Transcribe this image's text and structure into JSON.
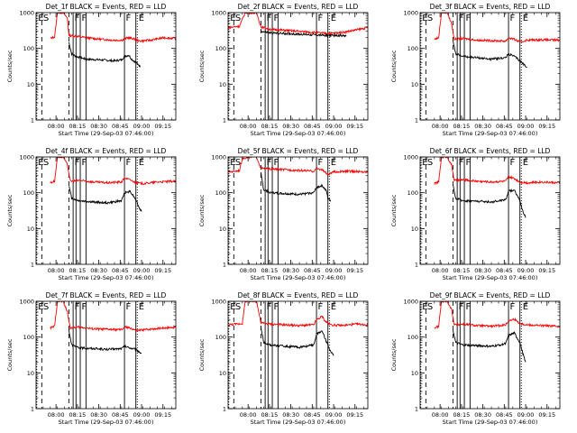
{
  "chart_data": {
    "type": "line",
    "title_suffix": "BLACK = Events, RED = LLD",
    "xlabel": "Start Time (29-Sep-03 07:46:00)",
    "ylabel": "Counts/sec",
    "y_scale": "log",
    "ylim": [
      1,
      1000
    ],
    "y_ticks": [
      "1",
      "10",
      "100",
      "1000"
    ],
    "x_ticks": [
      "08:00",
      "08:15",
      "08:30",
      "08:45",
      "09:00",
      "09:15"
    ],
    "x_range_minutes": [
      0,
      98
    ],
    "x_tick_minutes": [
      14,
      29,
      44,
      59,
      74,
      89
    ],
    "legend": [
      {
        "name": "Events",
        "color": "#000000"
      },
      {
        "name": "LLD",
        "color": "#ff0000"
      }
    ],
    "markers": [
      {
        "label": "E",
        "style": "dotted",
        "at": 0.5
      },
      {
        "label": "S",
        "style": "dashed",
        "at": 4
      },
      {
        "label": "",
        "style": "dashed",
        "at": 23
      },
      {
        "label": "F",
        "style": "solid",
        "at": 26
      },
      {
        "label": "",
        "style": "solid",
        "at": 28
      },
      {
        "label": "F",
        "style": "solid",
        "at": 31
      },
      {
        "label": "",
        "style": "solid",
        "at": 35
      },
      {
        "label": "F",
        "style": "solid",
        "at": 62
      },
      {
        "label": "",
        "style": "solid",
        "at": 70
      },
      {
        "label": "E",
        "style": "dotted",
        "at": 71
      }
    ],
    "panels": [
      {
        "detector": "Det_1f",
        "x_start": 10,
        "x_end": 98,
        "red": [
          [
            10,
            190
          ],
          [
            13,
            210
          ],
          [
            15,
            1000
          ],
          [
            17,
            1000
          ],
          [
            19,
            1000
          ],
          [
            22,
            700
          ],
          [
            23,
            230
          ],
          [
            28,
            220
          ],
          [
            35,
            200
          ],
          [
            45,
            180
          ],
          [
            55,
            170
          ],
          [
            60,
            170
          ],
          [
            62,
            180
          ],
          [
            64,
            200
          ],
          [
            67,
            190
          ],
          [
            70,
            180
          ],
          [
            72,
            160
          ],
          [
            80,
            170
          ],
          [
            90,
            200
          ],
          [
            98,
            190
          ]
        ],
        "black": [
          [
            23,
            150
          ],
          [
            25,
            70
          ],
          [
            28,
            60
          ],
          [
            35,
            50
          ],
          [
            45,
            48
          ],
          [
            55,
            45
          ],
          [
            60,
            48
          ],
          [
            62,
            60
          ],
          [
            65,
            65
          ],
          [
            67,
            50
          ],
          [
            70,
            40
          ],
          [
            72,
            35
          ],
          [
            73,
            30
          ]
        ]
      },
      {
        "detector": "Det_2f",
        "x_start": 0,
        "x_end": 98,
        "red": [
          [
            0,
            380
          ],
          [
            8,
            420
          ],
          [
            12,
            1000
          ],
          [
            20,
            1000
          ],
          [
            23,
            400
          ],
          [
            30,
            340
          ],
          [
            40,
            320
          ],
          [
            50,
            300
          ],
          [
            60,
            280
          ],
          [
            70,
            260
          ],
          [
            80,
            280
          ],
          [
            90,
            330
          ],
          [
            98,
            380
          ]
        ],
        "black": [
          [
            23,
            300
          ],
          [
            30,
            270
          ],
          [
            40,
            260
          ],
          [
            50,
            250
          ],
          [
            60,
            240
          ],
          [
            70,
            230
          ],
          [
            80,
            230
          ],
          [
            83,
            220
          ]
        ]
      },
      {
        "detector": "Det_3f",
        "x_start": 10,
        "x_end": 98,
        "red": [
          [
            10,
            180
          ],
          [
            13,
            200
          ],
          [
            15,
            1000
          ],
          [
            19,
            1000
          ],
          [
            22,
            500
          ],
          [
            24,
            180
          ],
          [
            30,
            190
          ],
          [
            40,
            170
          ],
          [
            50,
            165
          ],
          [
            60,
            160
          ],
          [
            62,
            200
          ],
          [
            66,
            180
          ],
          [
            70,
            150
          ],
          [
            75,
            170
          ],
          [
            85,
            175
          ],
          [
            98,
            170
          ]
        ],
        "black": [
          [
            23,
            160
          ],
          [
            25,
            70
          ],
          [
            30,
            60
          ],
          [
            40,
            55
          ],
          [
            50,
            50
          ],
          [
            60,
            55
          ],
          [
            62,
            70
          ],
          [
            66,
            60
          ],
          [
            70,
            45
          ],
          [
            73,
            35
          ],
          [
            75,
            30
          ]
        ]
      },
      {
        "detector": "Det_4f",
        "x_start": 10,
        "x_end": 98,
        "red": [
          [
            10,
            190
          ],
          [
            13,
            210
          ],
          [
            15,
            1000
          ],
          [
            19,
            1000
          ],
          [
            22,
            600
          ],
          [
            24,
            210
          ],
          [
            30,
            220
          ],
          [
            40,
            200
          ],
          [
            50,
            190
          ],
          [
            60,
            200
          ],
          [
            62,
            260
          ],
          [
            66,
            230
          ],
          [
            70,
            190
          ],
          [
            75,
            180
          ],
          [
            85,
            200
          ],
          [
            98,
            210
          ]
        ],
        "black": [
          [
            23,
            160
          ],
          [
            25,
            70
          ],
          [
            30,
            60
          ],
          [
            40,
            55
          ],
          [
            50,
            52
          ],
          [
            60,
            60
          ],
          [
            62,
            100
          ],
          [
            66,
            110
          ],
          [
            70,
            65
          ],
          [
            72,
            40
          ],
          [
            74,
            30
          ]
        ]
      },
      {
        "detector": "Det_5f",
        "x_start": 0,
        "x_end": 98,
        "red": [
          [
            0,
            380
          ],
          [
            8,
            420
          ],
          [
            10,
            900
          ],
          [
            14,
            1000
          ],
          [
            20,
            1000
          ],
          [
            23,
            480
          ],
          [
            30,
            460
          ],
          [
            40,
            440
          ],
          [
            50,
            420
          ],
          [
            60,
            400
          ],
          [
            62,
            480
          ],
          [
            66,
            440
          ],
          [
            70,
            320
          ],
          [
            74,
            380
          ],
          [
            85,
            400
          ],
          [
            98,
            380
          ]
        ],
        "black": [
          [
            23,
            350
          ],
          [
            25,
            120
          ],
          [
            30,
            100
          ],
          [
            40,
            95
          ],
          [
            50,
            90
          ],
          [
            60,
            100
          ],
          [
            62,
            140
          ],
          [
            66,
            160
          ],
          [
            69,
            110
          ],
          [
            70,
            70
          ],
          [
            72,
            60
          ]
        ]
      },
      {
        "detector": "Det_6f",
        "x_start": 10,
        "x_end": 98,
        "red": [
          [
            10,
            180
          ],
          [
            13,
            200
          ],
          [
            15,
            1000
          ],
          [
            19,
            1000
          ],
          [
            22,
            600
          ],
          [
            24,
            220
          ],
          [
            30,
            230
          ],
          [
            40,
            210
          ],
          [
            50,
            200
          ],
          [
            60,
            210
          ],
          [
            62,
            280
          ],
          [
            66,
            250
          ],
          [
            70,
            200
          ],
          [
            75,
            190
          ],
          [
            85,
            200
          ],
          [
            98,
            190
          ]
        ],
        "black": [
          [
            23,
            160
          ],
          [
            25,
            70
          ],
          [
            30,
            60
          ],
          [
            40,
            58
          ],
          [
            50,
            55
          ],
          [
            60,
            65
          ],
          [
            62,
            110
          ],
          [
            66,
            120
          ],
          [
            70,
            60
          ],
          [
            72,
            30
          ],
          [
            74,
            20
          ]
        ]
      },
      {
        "detector": "Det_7f",
        "x_start": 10,
        "x_end": 98,
        "red": [
          [
            10,
            180
          ],
          [
            13,
            200
          ],
          [
            15,
            1000
          ],
          [
            19,
            1000
          ],
          [
            22,
            500
          ],
          [
            24,
            180
          ],
          [
            30,
            190
          ],
          [
            40,
            170
          ],
          [
            50,
            165
          ],
          [
            60,
            160
          ],
          [
            62,
            190
          ],
          [
            66,
            180
          ],
          [
            70,
            150
          ],
          [
            75,
            160
          ],
          [
            85,
            175
          ],
          [
            98,
            190
          ]
        ],
        "black": [
          [
            23,
            160
          ],
          [
            25,
            60
          ],
          [
            30,
            50
          ],
          [
            40,
            48
          ],
          [
            50,
            45
          ],
          [
            60,
            48
          ],
          [
            62,
            55
          ],
          [
            66,
            50
          ],
          [
            70,
            45
          ],
          [
            72,
            40
          ],
          [
            74,
            35
          ]
        ]
      },
      {
        "detector": "Det_8f",
        "x_start": 0,
        "x_end": 98,
        "red": [
          [
            0,
            220
          ],
          [
            10,
            240
          ],
          [
            12,
            1000
          ],
          [
            20,
            1000
          ],
          [
            23,
            250
          ],
          [
            30,
            230
          ],
          [
            40,
            220
          ],
          [
            50,
            210
          ],
          [
            60,
            220
          ],
          [
            62,
            300
          ],
          [
            66,
            380
          ],
          [
            68,
            280
          ],
          [
            72,
            220
          ],
          [
            80,
            210
          ],
          [
            90,
            230
          ],
          [
            98,
            220
          ]
        ],
        "black": [
          [
            23,
            200
          ],
          [
            25,
            70
          ],
          [
            30,
            60
          ],
          [
            40,
            55
          ],
          [
            50,
            52
          ],
          [
            60,
            60
          ],
          [
            62,
            120
          ],
          [
            66,
            150
          ],
          [
            68,
            90
          ],
          [
            70,
            60
          ],
          [
            72,
            40
          ],
          [
            74,
            30
          ]
        ]
      },
      {
        "detector": "Det_9f",
        "x_start": 10,
        "x_end": 98,
        "red": [
          [
            10,
            180
          ],
          [
            13,
            200
          ],
          [
            15,
            1000
          ],
          [
            19,
            1000
          ],
          [
            22,
            600
          ],
          [
            24,
            220
          ],
          [
            30,
            230
          ],
          [
            40,
            210
          ],
          [
            50,
            200
          ],
          [
            60,
            220
          ],
          [
            62,
            280
          ],
          [
            66,
            320
          ],
          [
            70,
            240
          ],
          [
            75,
            220
          ],
          [
            85,
            210
          ],
          [
            98,
            200
          ]
        ],
        "black": [
          [
            23,
            160
          ],
          [
            25,
            70
          ],
          [
            30,
            60
          ],
          [
            40,
            58
          ],
          [
            50,
            55
          ],
          [
            60,
            65
          ],
          [
            62,
            110
          ],
          [
            66,
            130
          ],
          [
            70,
            70
          ],
          [
            72,
            35
          ],
          [
            74,
            20
          ]
        ]
      }
    ]
  }
}
